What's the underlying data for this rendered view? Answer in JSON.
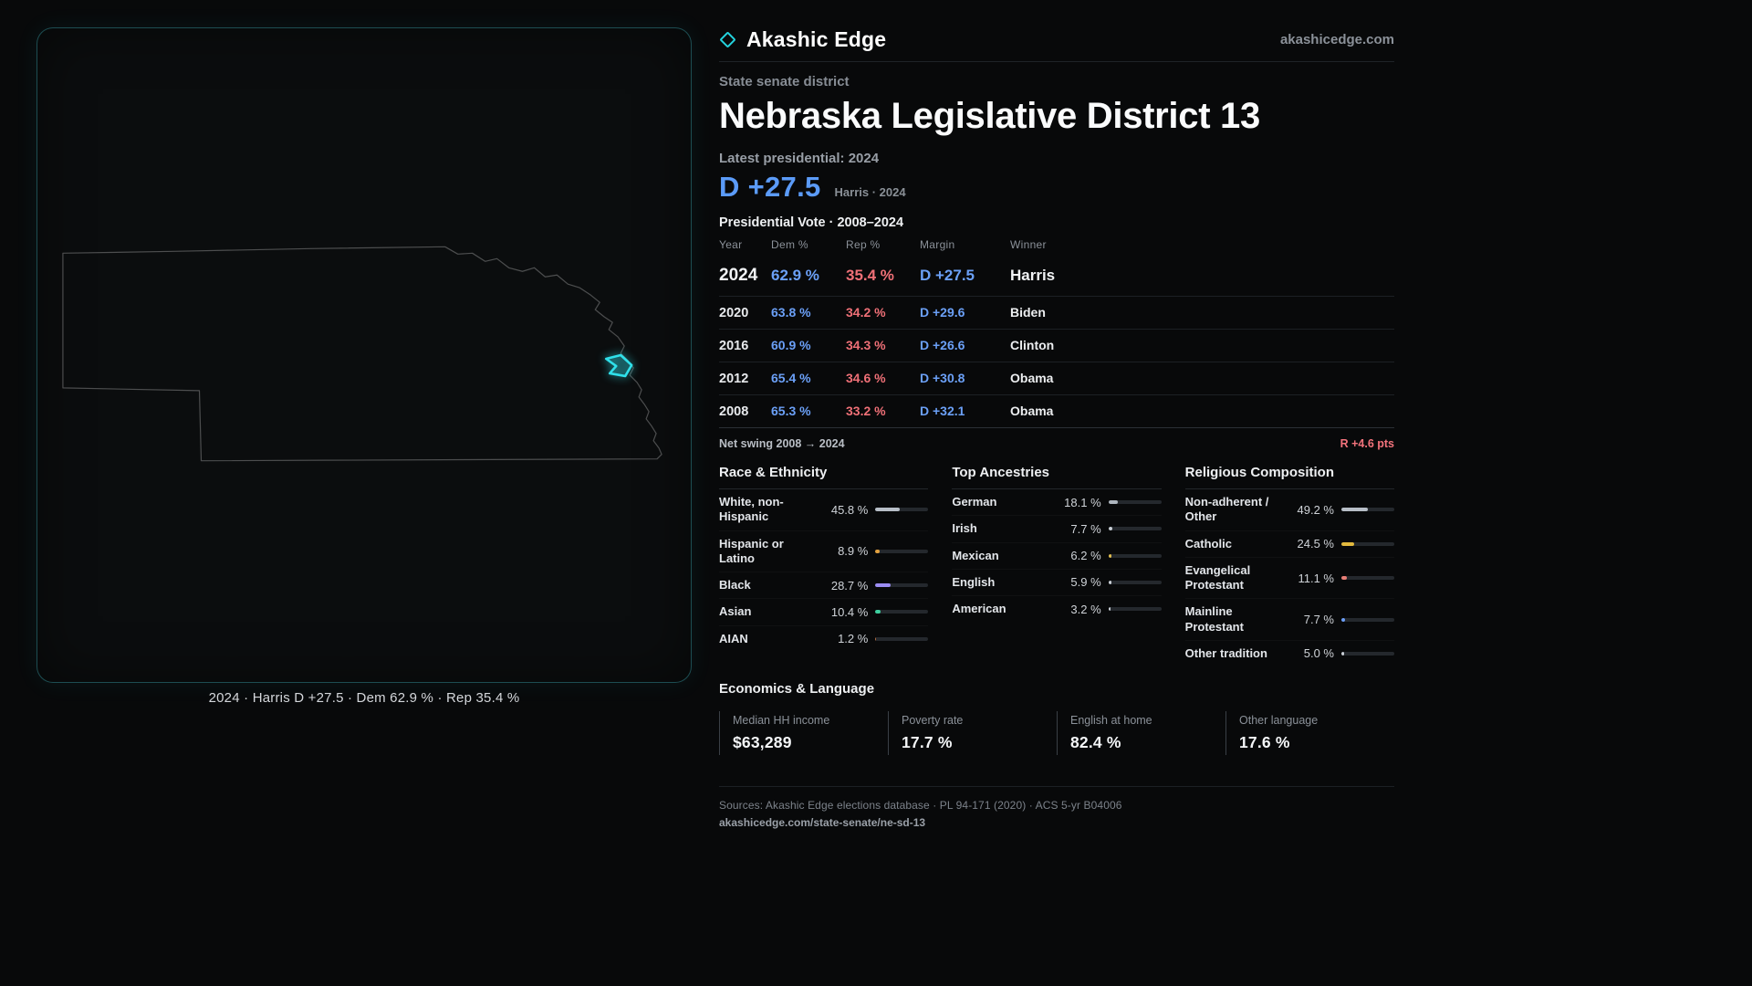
{
  "theme": {
    "dem_blue": "#5b9bf8",
    "rep_red": "#ef7077",
    "accent_cyan": "#2fe0ea",
    "swing_red": "#f2737c",
    "background": "#08090a"
  },
  "brand": {
    "name": "Akashic Edge",
    "domain": "akashicedge.com"
  },
  "map": {
    "caption": "2024 · Harris D +27.5 · Dem 62.9 % · Rep 35.4 %"
  },
  "header": {
    "category": "State senate district",
    "title": "Nebraska Legislative District 13",
    "latest_label": "Latest presidential: 2024",
    "headline_margin": "D +27.5",
    "headline_context": "Harris · 2024"
  },
  "vote_table": {
    "title": "Presidential Vote · 2008–2024",
    "columns": [
      "Year",
      "Dem %",
      "Rep %",
      "Margin",
      "Winner"
    ],
    "rows": [
      {
        "year": "2024",
        "dem": "62.9 %",
        "rep": "35.4 %",
        "margin": "D +27.5",
        "winner": "Harris"
      },
      {
        "year": "2020",
        "dem": "63.8 %",
        "rep": "34.2 %",
        "margin": "D +29.6",
        "winner": "Biden"
      },
      {
        "year": "2016",
        "dem": "60.9 %",
        "rep": "34.3 %",
        "margin": "D +26.6",
        "winner": "Clinton"
      },
      {
        "year": "2012",
        "dem": "65.4 %",
        "rep": "34.6 %",
        "margin": "D +30.8",
        "winner": "Obama"
      },
      {
        "year": "2008",
        "dem": "65.3 %",
        "rep": "33.2 %",
        "margin": "D +32.1",
        "winner": "Obama"
      }
    ],
    "net_swing_label": "Net swing 2008 → 2024",
    "net_swing_value": "R +4.6 pts"
  },
  "demographics": {
    "race": {
      "header": "Race & Ethnicity",
      "items": [
        {
          "label": "White, non-Hispanic",
          "value": "45.8 %",
          "pct": 45.8,
          "color": "#b7bec7"
        },
        {
          "label": "Hispanic or Latino",
          "value": "8.9 %",
          "pct": 8.9,
          "color": "#e2a13f"
        },
        {
          "label": "Black",
          "value": "28.7 %",
          "pct": 28.7,
          "color": "#9b8cf2"
        },
        {
          "label": "Asian",
          "value": "10.4 %",
          "pct": 10.4,
          "color": "#3ecf9f"
        },
        {
          "label": "AIAN",
          "value": "1.2 %",
          "pct": 1.2,
          "color": "#b06a3e"
        }
      ]
    },
    "ancestries": {
      "header": "Top Ancestries",
      "items": [
        {
          "label": "German",
          "value": "18.1 %",
          "pct": 18.1,
          "color": "#aeb6bf"
        },
        {
          "label": "Irish",
          "value": "7.7 %",
          "pct": 7.7,
          "color": "#c9cfd6"
        },
        {
          "label": "Mexican",
          "value": "6.2 %",
          "pct": 6.2,
          "color": "#e0bd4e"
        },
        {
          "label": "English",
          "value": "5.9 %",
          "pct": 5.9,
          "color": "#c9cfd6"
        },
        {
          "label": "American",
          "value": "3.2 %",
          "pct": 3.2,
          "color": "#c9cfd6"
        }
      ]
    },
    "religion": {
      "header": "Religious Composition",
      "items": [
        {
          "label": "Non-adherent / Other",
          "value": "49.2 %",
          "pct": 49.2,
          "color": "#b7bec7"
        },
        {
          "label": "Catholic",
          "value": "24.5 %",
          "pct": 24.5,
          "color": "#e2b93e"
        },
        {
          "label": "Evangelical Protestant",
          "value": "11.1 %",
          "pct": 11.1,
          "color": "#e87e76"
        },
        {
          "label": "Mainline Protestant",
          "value": "7.7 %",
          "pct": 7.7,
          "color": "#6b9ef7"
        },
        {
          "label": "Other tradition",
          "value": "5.0 %",
          "pct": 5.0,
          "color": "#c9cfd6"
        }
      ]
    }
  },
  "economics": {
    "header": "Economics & Language",
    "stats": [
      {
        "label": "Median HH income",
        "value": "$63,289"
      },
      {
        "label": "Poverty rate",
        "value": "17.7 %"
      },
      {
        "label": "English at home",
        "value": "82.4 %"
      },
      {
        "label": "Other language",
        "value": "17.6 %"
      }
    ]
  },
  "footer": {
    "sources": "Sources: Akashic Edge elections database · PL 94-171 (2020) · ACS 5-yr B04006",
    "url": "akashicedge.com/state-senate/ne-sd-13"
  }
}
